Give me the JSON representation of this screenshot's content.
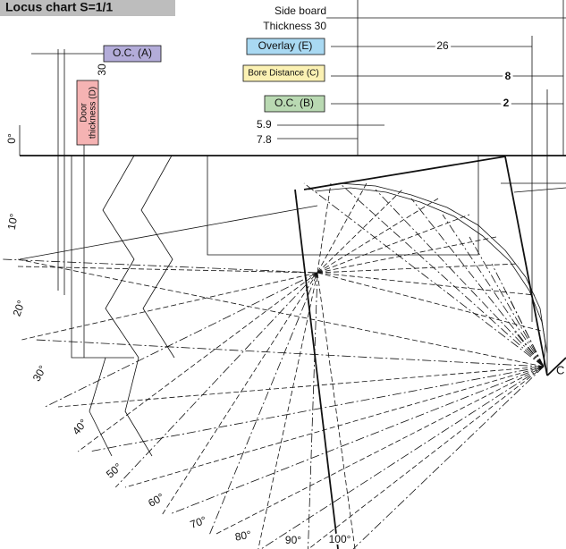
{
  "header": {
    "title": "Locus chart S=1/1"
  },
  "side_board": {
    "line1": "Side board",
    "line2": "Thickness 30"
  },
  "labels": {
    "overlay": "Overlay (E)",
    "bore_distance": "Bore Distance (C)",
    "oc_b": "O.C. (B)",
    "oc_a": "O.C. (A)",
    "door_thickness": [
      "Door",
      "thickness (D)"
    ]
  },
  "dimensions": {
    "overlay": "26",
    "bore_distance": "8",
    "oc_b": "2",
    "door_thickness": "30",
    "offset_1": "5.9",
    "offset_2": "7.8"
  },
  "angles": [
    "0°",
    "10°",
    "20°",
    "30°",
    "40°",
    "50°",
    "60°",
    "70°",
    "80°",
    "90°",
    "100°"
  ],
  "corner_label": "C"
}
